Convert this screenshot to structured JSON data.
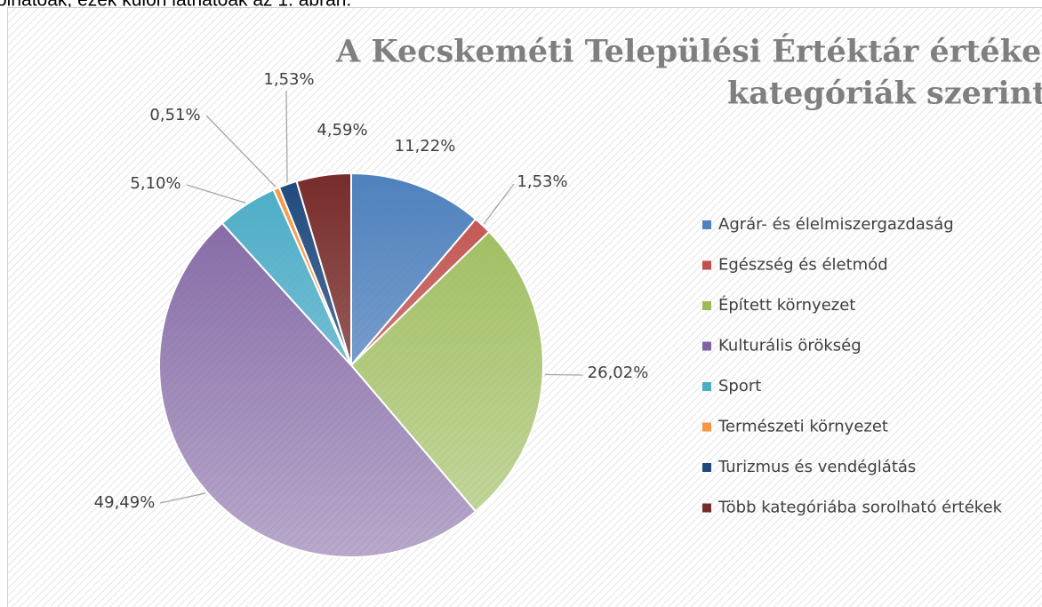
{
  "caption_text": "olhatóak, ezek külön láthatóak az 1. ábrán.",
  "chart_data": {
    "type": "pie",
    "title_lines": [
      "A Kecskeméti Települési Értéktár értékei",
      "kategóriák szerint"
    ],
    "categories": [
      "Agrár- és élelmiszergazdaság",
      "Egészség és életmód",
      "Épített környezet",
      "Kulturális örökség",
      "Sport",
      "Természeti környezet",
      "Turizmus és vendéglátás",
      "Több kategóriába sorolható értékek"
    ],
    "values": [
      11.22,
      1.53,
      26.02,
      49.49,
      5.1,
      0.51,
      1.53,
      4.59
    ],
    "value_labels": [
      "11,22%",
      "1,53%",
      "26,02%",
      "49,49%",
      "5,10%",
      "0,51%",
      "1,53%",
      "4,59%"
    ],
    "colors": [
      "#4f81bd",
      "#c0504d",
      "#9bbb59",
      "#8064a2",
      "#4bacc6",
      "#f79646",
      "#1f497d",
      "#772c2a"
    ],
    "legend": "right"
  }
}
